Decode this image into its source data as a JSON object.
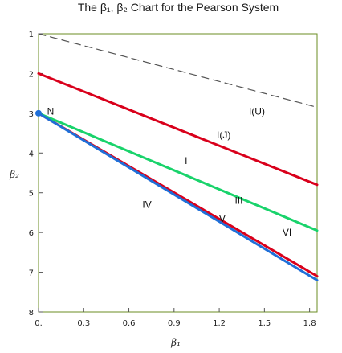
{
  "chart_data": {
    "type": "line",
    "title": "The β₁, β₂ Chart for the Pearson System",
    "xlabel": "β₁",
    "ylabel": "β₂",
    "xlim": [
      0,
      1.85
    ],
    "ylim": [
      8,
      1
    ],
    "y_inverted": true,
    "x_tick_labels": [
      "0.",
      "0.3",
      "0.6",
      "0.9",
      "1.2",
      "1.5",
      "1.8"
    ],
    "x_tick_values": [
      0,
      0.3,
      0.6,
      0.9,
      1.2,
      1.5,
      1.8
    ],
    "y_tick_labels": [
      "1",
      "2",
      "3",
      "4",
      "5",
      "6",
      "7",
      "8"
    ],
    "y_tick_values": [
      1,
      2,
      3,
      4,
      5,
      6,
      7,
      8
    ],
    "grid": false,
    "frame_color": "#6b8e23",
    "series": [
      {
        "key": "limit",
        "color": "#555555",
        "dash": "9,6",
        "x": [
          0,
          1.85
        ],
        "y": [
          1,
          2.85
        ]
      },
      {
        "key": "upper-red",
        "color": "#d9001b",
        "x": [
          0,
          1.85
        ],
        "y": [
          2,
          4.8
        ]
      },
      {
        "key": "lower-red",
        "color": "#d9001b",
        "x": [
          0,
          1.85
        ],
        "y": [
          3,
          7.1
        ]
      },
      {
        "key": "green",
        "color": "#19d36b",
        "x": [
          0,
          1.85
        ],
        "y": [
          3,
          5.95
        ]
      },
      {
        "key": "blue",
        "color": "#1f6fd8",
        "x": [
          0,
          1.85
        ],
        "y": [
          3,
          7.2
        ]
      }
    ],
    "points": [
      {
        "key": "normal",
        "color": "#1f6fd8",
        "x": 0,
        "y": 3
      }
    ],
    "annotations": [
      {
        "text": "N",
        "x": 0.08,
        "y": 2.95
      },
      {
        "text": "I(U)",
        "x": 1.45,
        "y": 2.95
      },
      {
        "text": "I(J)",
        "x": 1.23,
        "y": 3.55
      },
      {
        "text": "I",
        "x": 0.98,
        "y": 4.2
      },
      {
        "text": "III",
        "x": 1.33,
        "y": 5.2
      },
      {
        "text": "IV",
        "x": 0.72,
        "y": 5.3
      },
      {
        "text": "V",
        "x": 1.22,
        "y": 5.65
      },
      {
        "text": "VI",
        "x": 1.65,
        "y": 6.0
      }
    ]
  }
}
